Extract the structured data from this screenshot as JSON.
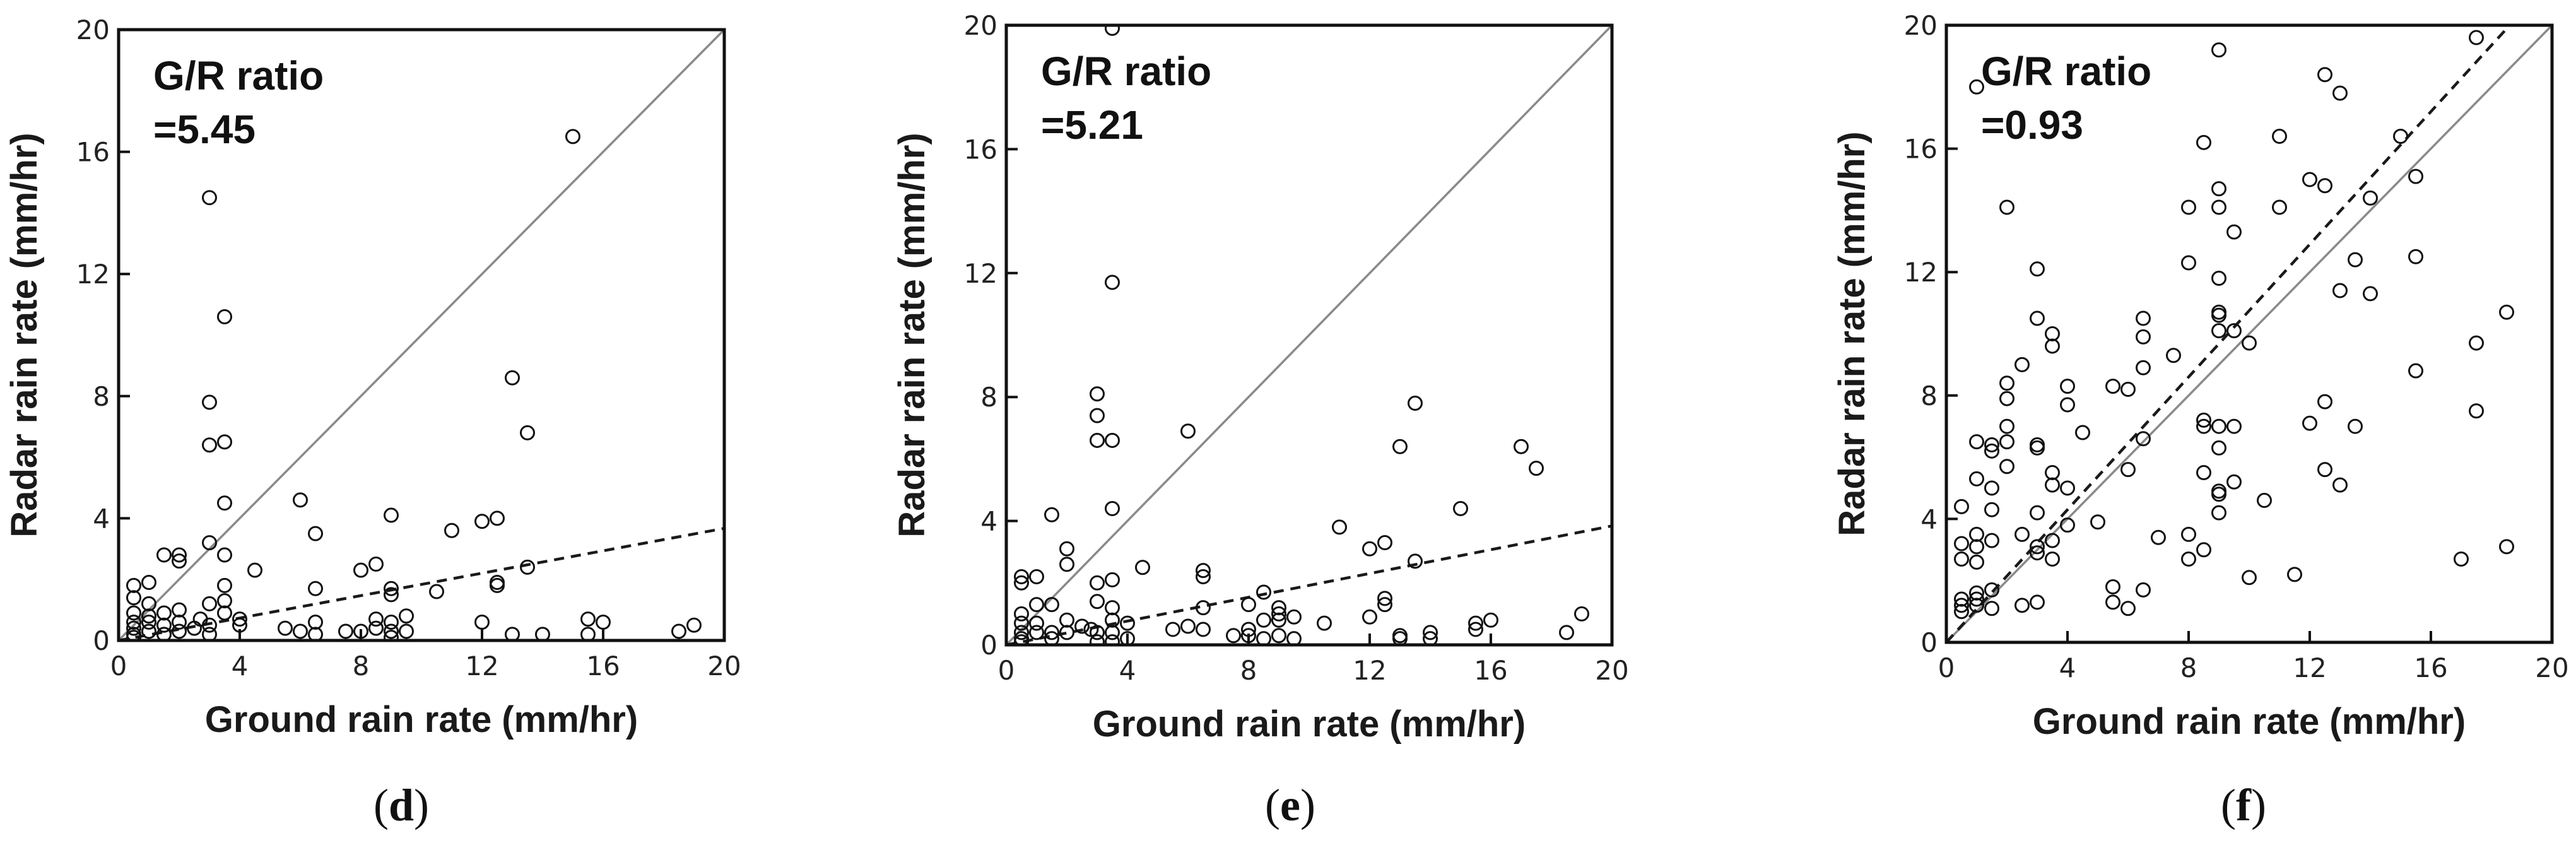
{
  "chart_data": [
    {
      "panel": "d",
      "type": "scatter",
      "xlabel": "Ground rain rate (mm/hr)",
      "ylabel": "Radar rain rate (mm/hr)",
      "xlim": [
        0,
        20
      ],
      "ylim": [
        0,
        20
      ],
      "xticks": [
        0,
        4,
        8,
        12,
        16,
        20
      ],
      "yticks": [
        0,
        4,
        8,
        12,
        16,
        20
      ],
      "annotation": [
        "G/R ratio",
        "=5.45"
      ],
      "reference_line": {
        "style": "solid",
        "slope": 1
      },
      "fit_line": {
        "style": "dashed",
        "slope": 0.1835
      },
      "points": [
        [
          0.5,
          1.8
        ],
        [
          0.5,
          1.4
        ],
        [
          0.5,
          0.9
        ],
        [
          0.5,
          0.6
        ],
        [
          0.5,
          0.4
        ],
        [
          0.5,
          0.2
        ],
        [
          0.5,
          0.1
        ],
        [
          1.0,
          1.9
        ],
        [
          1.0,
          1.2
        ],
        [
          1.0,
          0.8
        ],
        [
          1.0,
          0.6
        ],
        [
          1.0,
          0.3
        ],
        [
          1.5,
          2.8
        ],
        [
          1.5,
          0.9
        ],
        [
          1.5,
          0.5
        ],
        [
          1.5,
          0.2
        ],
        [
          2.0,
          2.8
        ],
        [
          2.0,
          2.6
        ],
        [
          2.0,
          1.0
        ],
        [
          2.0,
          0.6
        ],
        [
          2.0,
          0.3
        ],
        [
          2.5,
          0.4
        ],
        [
          2.7,
          0.7
        ],
        [
          3.0,
          14.5
        ],
        [
          3.0,
          7.8
        ],
        [
          3.0,
          6.4
        ],
        [
          3.0,
          3.2
        ],
        [
          3.0,
          1.2
        ],
        [
          3.0,
          0.5
        ],
        [
          3.0,
          0.2
        ],
        [
          3.5,
          10.6
        ],
        [
          3.5,
          6.5
        ],
        [
          3.5,
          4.5
        ],
        [
          3.5,
          2.8
        ],
        [
          3.5,
          1.8
        ],
        [
          3.5,
          1.3
        ],
        [
          3.5,
          0.9
        ],
        [
          4.0,
          0.7
        ],
        [
          4.0,
          0.5
        ],
        [
          4.5,
          2.3
        ],
        [
          5.5,
          0.4
        ],
        [
          6.0,
          4.6
        ],
        [
          6.0,
          0.3
        ],
        [
          6.5,
          3.5
        ],
        [
          6.5,
          1.7
        ],
        [
          6.5,
          0.6
        ],
        [
          6.5,
          0.2
        ],
        [
          7.5,
          0.3
        ],
        [
          8.0,
          2.3
        ],
        [
          8.0,
          0.3
        ],
        [
          8.5,
          2.5
        ],
        [
          8.5,
          0.7
        ],
        [
          8.5,
          0.4
        ],
        [
          9.0,
          4.1
        ],
        [
          9.0,
          1.7
        ],
        [
          9.0,
          1.5
        ],
        [
          9.0,
          0.6
        ],
        [
          9.0,
          0.3
        ],
        [
          9.0,
          0.1
        ],
        [
          9.5,
          0.8
        ],
        [
          9.5,
          0.3
        ],
        [
          10.5,
          1.6
        ],
        [
          11.0,
          3.6
        ],
        [
          12.0,
          3.9
        ],
        [
          12.0,
          0.6
        ],
        [
          12.5,
          4.0
        ],
        [
          12.5,
          1.9
        ],
        [
          12.5,
          1.8
        ],
        [
          13.0,
          8.6
        ],
        [
          13.0,
          0.2
        ],
        [
          13.5,
          6.8
        ],
        [
          13.5,
          2.4
        ],
        [
          14.0,
          0.2
        ],
        [
          15.0,
          16.5
        ],
        [
          15.5,
          0.7
        ],
        [
          15.5,
          0.2
        ],
        [
          16.0,
          0.6
        ],
        [
          18.5,
          0.3
        ],
        [
          19.0,
          0.5
        ]
      ]
    },
    {
      "panel": "e",
      "type": "scatter",
      "xlabel": "Ground rain rate (mm/hr)",
      "ylabel": "Radar rain rate (mm/hr)",
      "xlim": [
        0,
        20
      ],
      "ylim": [
        0,
        20
      ],
      "xticks": [
        0,
        4,
        8,
        12,
        16,
        20
      ],
      "yticks": [
        0,
        4,
        8,
        12,
        16,
        20
      ],
      "annotation": [
        "G/R ratio",
        "=5.21"
      ],
      "reference_line": {
        "style": "solid",
        "slope": 1
      },
      "fit_line": {
        "style": "dashed",
        "slope": 0.192
      },
      "points": [
        [
          0.5,
          2.2
        ],
        [
          0.5,
          2.0
        ],
        [
          0.5,
          1.0
        ],
        [
          0.5,
          0.7
        ],
        [
          0.5,
          0.4
        ],
        [
          0.5,
          0.2
        ],
        [
          0.5,
          0.1
        ],
        [
          1.0,
          2.2
        ],
        [
          1.0,
          1.3
        ],
        [
          1.0,
          0.7
        ],
        [
          1.0,
          0.4
        ],
        [
          1.5,
          4.2
        ],
        [
          1.5,
          1.3
        ],
        [
          1.5,
          0.4
        ],
        [
          1.5,
          0.2
        ],
        [
          2.0,
          3.1
        ],
        [
          2.0,
          2.6
        ],
        [
          2.0,
          0.8
        ],
        [
          2.0,
          0.4
        ],
        [
          2.5,
          0.6
        ],
        [
          2.8,
          0.5
        ],
        [
          3.0,
          8.1
        ],
        [
          3.0,
          7.4
        ],
        [
          3.0,
          6.6
        ],
        [
          3.0,
          2.0
        ],
        [
          3.0,
          1.4
        ],
        [
          3.0,
          0.4
        ],
        [
          3.0,
          0.1
        ],
        [
          3.5,
          19.9
        ],
        [
          3.5,
          11.7
        ],
        [
          3.5,
          6.6
        ],
        [
          3.5,
          4.4
        ],
        [
          3.5,
          2.1
        ],
        [
          3.5,
          1.2
        ],
        [
          3.5,
          0.8
        ],
        [
          3.5,
          0.4
        ],
        [
          3.5,
          0.1
        ],
        [
          4.0,
          0.7
        ],
        [
          4.0,
          0.2
        ],
        [
          4.5,
          2.5
        ],
        [
          5.5,
          0.5
        ],
        [
          6.0,
          6.9
        ],
        [
          6.0,
          0.6
        ],
        [
          6.5,
          2.4
        ],
        [
          6.5,
          2.2
        ],
        [
          6.5,
          1.2
        ],
        [
          6.5,
          0.5
        ],
        [
          7.5,
          0.3
        ],
        [
          8.0,
          1.3
        ],
        [
          8.0,
          0.5
        ],
        [
          8.0,
          0.3
        ],
        [
          8.5,
          1.7
        ],
        [
          8.5,
          0.8
        ],
        [
          8.5,
          0.2
        ],
        [
          9.0,
          1.2
        ],
        [
          9.0,
          1.0
        ],
        [
          9.0,
          0.8
        ],
        [
          9.0,
          0.3
        ],
        [
          9.5,
          0.9
        ],
        [
          9.5,
          0.2
        ],
        [
          10.5,
          0.7
        ],
        [
          11.0,
          3.8
        ],
        [
          12.0,
          3.1
        ],
        [
          12.0,
          0.9
        ],
        [
          12.5,
          3.3
        ],
        [
          12.5,
          1.5
        ],
        [
          12.5,
          1.3
        ],
        [
          13.0,
          6.4
        ],
        [
          13.0,
          0.3
        ],
        [
          13.0,
          0.2
        ],
        [
          13.5,
          7.8
        ],
        [
          13.5,
          2.7
        ],
        [
          14.0,
          0.4
        ],
        [
          14.0,
          0.2
        ],
        [
          15.0,
          4.4
        ],
        [
          15.5,
          0.7
        ],
        [
          15.5,
          0.5
        ],
        [
          16.0,
          0.8
        ],
        [
          17.0,
          6.4
        ],
        [
          17.5,
          5.7
        ],
        [
          18.5,
          0.4
        ],
        [
          19.0,
          1.0
        ]
      ]
    },
    {
      "panel": "f",
      "type": "scatter",
      "xlabel": "Ground rain rate (mm/hr)",
      "ylabel": "Radar rain rate (mm/hr)",
      "xlim": [
        0,
        20
      ],
      "ylim": [
        0,
        20
      ],
      "xticks": [
        0,
        4,
        8,
        12,
        16,
        20
      ],
      "yticks": [
        0,
        4,
        8,
        12,
        16,
        20
      ],
      "annotation": [
        "G/R ratio",
        "=0.93"
      ],
      "reference_line": {
        "style": "solid",
        "slope": 1
      },
      "fit_line": {
        "style": "dashed",
        "slope": 1.075
      },
      "points": [
        [
          0.5,
          4.4
        ],
        [
          0.5,
          3.2
        ],
        [
          0.5,
          2.7
        ],
        [
          0.5,
          1.4
        ],
        [
          0.5,
          1.2
        ],
        [
          0.5,
          1.0
        ],
        [
          1.0,
          18.0
        ],
        [
          1.0,
          6.5
        ],
        [
          1.0,
          5.3
        ],
        [
          1.0,
          3.5
        ],
        [
          1.0,
          3.1
        ],
        [
          1.0,
          2.6
        ],
        [
          1.0,
          1.6
        ],
        [
          1.0,
          1.4
        ],
        [
          1.0,
          1.2
        ],
        [
          1.5,
          6.4
        ],
        [
          1.5,
          6.2
        ],
        [
          1.5,
          5.0
        ],
        [
          1.5,
          4.3
        ],
        [
          1.5,
          3.3
        ],
        [
          1.5,
          1.7
        ],
        [
          1.5,
          1.1
        ],
        [
          2.0,
          14.1
        ],
        [
          2.0,
          8.4
        ],
        [
          2.0,
          7.9
        ],
        [
          2.0,
          7.0
        ],
        [
          2.0,
          6.5
        ],
        [
          2.0,
          5.7
        ],
        [
          2.5,
          9.0
        ],
        [
          2.5,
          3.5
        ],
        [
          2.5,
          1.2
        ],
        [
          3.0,
          12.1
        ],
        [
          3.0,
          10.5
        ],
        [
          3.0,
          6.4
        ],
        [
          3.0,
          6.3
        ],
        [
          3.0,
          4.2
        ],
        [
          3.0,
          3.1
        ],
        [
          3.0,
          2.9
        ],
        [
          3.0,
          1.3
        ],
        [
          3.5,
          10.0
        ],
        [
          3.5,
          9.6
        ],
        [
          3.5,
          5.5
        ],
        [
          3.5,
          5.1
        ],
        [
          3.5,
          3.3
        ],
        [
          3.5,
          2.7
        ],
        [
          4.0,
          8.3
        ],
        [
          4.0,
          7.7
        ],
        [
          4.0,
          5.0
        ],
        [
          4.0,
          3.8
        ],
        [
          4.5,
          6.8
        ],
        [
          5.0,
          3.9
        ],
        [
          5.5,
          8.3
        ],
        [
          5.5,
          1.8
        ],
        [
          5.5,
          1.3
        ],
        [
          6.0,
          8.2
        ],
        [
          6.0,
          5.6
        ],
        [
          6.0,
          1.1
        ],
        [
          6.5,
          10.5
        ],
        [
          6.5,
          9.9
        ],
        [
          6.5,
          8.9
        ],
        [
          6.5,
          6.6
        ],
        [
          6.5,
          1.7
        ],
        [
          7.0,
          3.4
        ],
        [
          7.5,
          9.3
        ],
        [
          8.0,
          14.1
        ],
        [
          8.0,
          12.3
        ],
        [
          8.0,
          3.5
        ],
        [
          8.0,
          2.7
        ],
        [
          8.5,
          16.2
        ],
        [
          8.5,
          7.2
        ],
        [
          8.5,
          7.0
        ],
        [
          8.5,
          5.5
        ],
        [
          8.5,
          3.0
        ],
        [
          9.0,
          19.2
        ],
        [
          9.0,
          14.7
        ],
        [
          9.0,
          14.1
        ],
        [
          9.0,
          11.8
        ],
        [
          9.0,
          10.7
        ],
        [
          9.0,
          10.6
        ],
        [
          9.0,
          10.1
        ],
        [
          9.0,
          7.0
        ],
        [
          9.0,
          6.3
        ],
        [
          9.0,
          4.9
        ],
        [
          9.0,
          4.8
        ],
        [
          9.0,
          4.2
        ],
        [
          9.5,
          13.3
        ],
        [
          9.5,
          10.1
        ],
        [
          9.5,
          7.0
        ],
        [
          9.5,
          5.2
        ],
        [
          10.0,
          9.7
        ],
        [
          10.0,
          2.1
        ],
        [
          10.5,
          4.6
        ],
        [
          11.0,
          16.4
        ],
        [
          11.0,
          14.1
        ],
        [
          11.5,
          2.2
        ],
        [
          12.0,
          15.0
        ],
        [
          12.0,
          7.1
        ],
        [
          12.5,
          18.4
        ],
        [
          12.5,
          14.8
        ],
        [
          12.5,
          7.8
        ],
        [
          12.5,
          5.6
        ],
        [
          13.0,
          17.8
        ],
        [
          13.0,
          11.4
        ],
        [
          13.0,
          5.1
        ],
        [
          13.5,
          12.4
        ],
        [
          13.5,
          7.0
        ],
        [
          14.0,
          14.4
        ],
        [
          14.0,
          11.3
        ],
        [
          15.0,
          16.4
        ],
        [
          15.5,
          15.1
        ],
        [
          15.5,
          12.5
        ],
        [
          15.5,
          8.8
        ],
        [
          17.0,
          2.7
        ],
        [
          17.5,
          19.6
        ],
        [
          17.5,
          9.7
        ],
        [
          17.5,
          7.5
        ],
        [
          18.5,
          10.7
        ],
        [
          18.5,
          3.1
        ]
      ]
    }
  ]
}
